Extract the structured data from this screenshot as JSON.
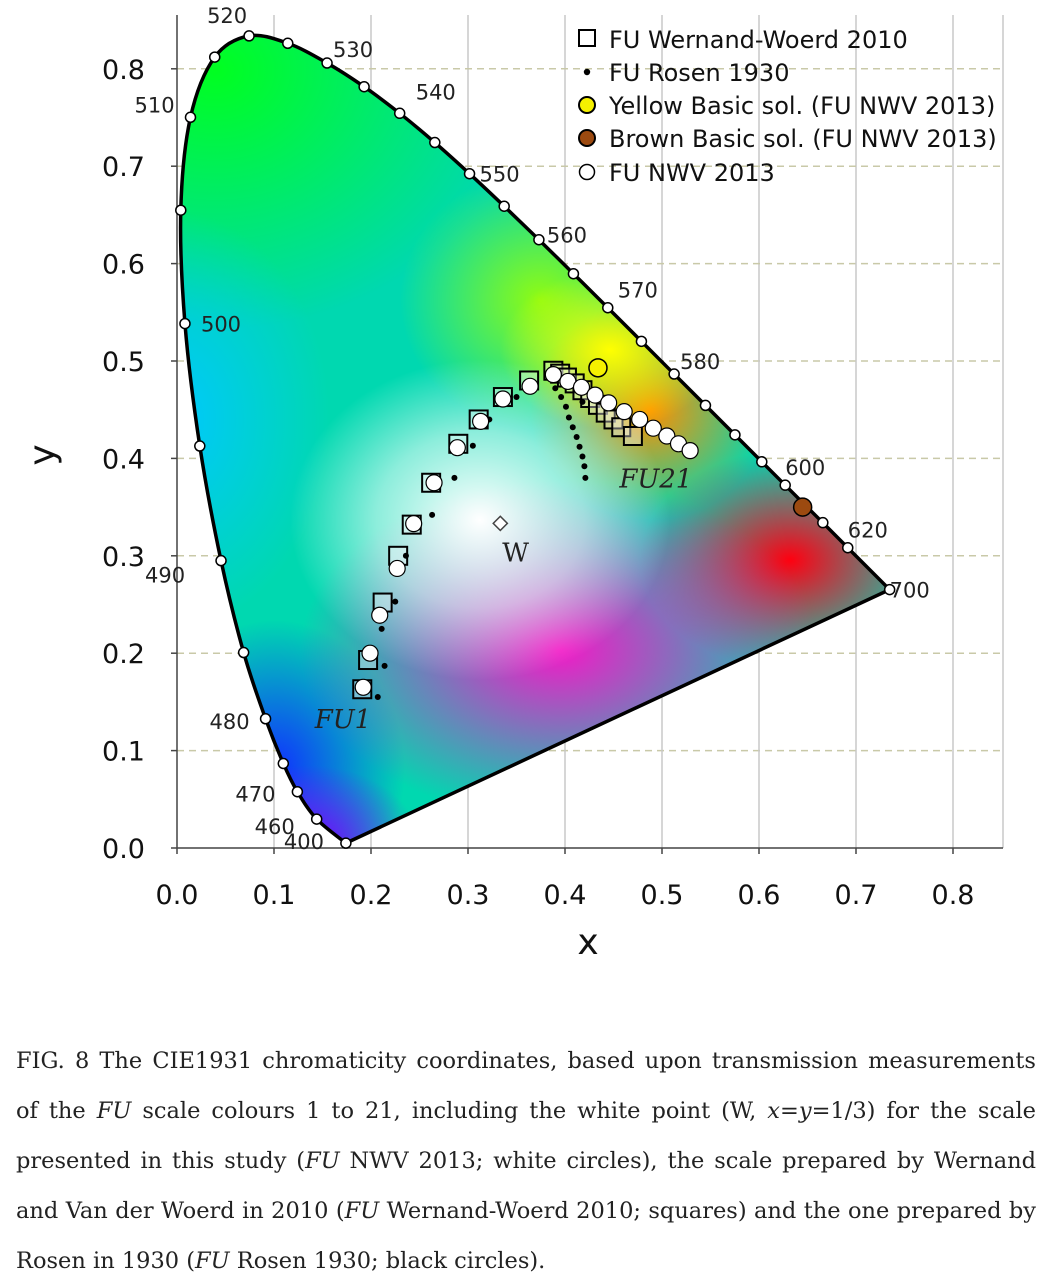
{
  "chart_data": {
    "type": "scatter",
    "xlabel": "x",
    "ylabel": "y",
    "xlim": [
      0.0,
      0.85
    ],
    "ylim": [
      0.0,
      0.85
    ],
    "x_ticks": [
      "0.0",
      "0.1",
      "0.2",
      "0.3",
      "0.4",
      "0.5",
      "0.6",
      "0.7",
      "0.8"
    ],
    "y_ticks": [
      "0.0",
      "0.1",
      "0.2",
      "0.3",
      "0.4",
      "0.5",
      "0.6",
      "0.7",
      "0.8"
    ],
    "grid": "horizontal dashed, vertical solid",
    "legend_position": "top-right",
    "legend": [
      "FU Wernand-Woerd 2010",
      "FU Rosen 1930",
      "Yellow Basic sol. (FU NWV 2013)",
      "Brown Basic sol. (FU NWV 2013)",
      "FU NWV 2013"
    ],
    "spectral_locus": [
      [
        0.1741,
        0.005
      ],
      [
        0.144,
        0.0297
      ],
      [
        0.1241,
        0.0578
      ],
      [
        0.1096,
        0.0868
      ],
      [
        0.0913,
        0.1327
      ],
      [
        0.0687,
        0.2007
      ],
      [
        0.0454,
        0.295
      ],
      [
        0.0235,
        0.4127
      ],
      [
        0.0082,
        0.5384
      ],
      [
        0.0039,
        0.6548
      ],
      [
        0.0139,
        0.7502
      ],
      [
        0.0389,
        0.812
      ],
      [
        0.0743,
        0.8338
      ],
      [
        0.1142,
        0.8262
      ],
      [
        0.1547,
        0.8059
      ],
      [
        0.1929,
        0.7816
      ],
      [
        0.2296,
        0.7543
      ],
      [
        0.2658,
        0.7243
      ],
      [
        0.3016,
        0.6923
      ],
      [
        0.3373,
        0.6589
      ],
      [
        0.3731,
        0.6245
      ],
      [
        0.4087,
        0.5896
      ],
      [
        0.4441,
        0.5547
      ],
      [
        0.4788,
        0.5202
      ],
      [
        0.5125,
        0.4866
      ],
      [
        0.5448,
        0.4544
      ],
      [
        0.5752,
        0.4242
      ],
      [
        0.6029,
        0.3965
      ],
      [
        0.627,
        0.3725
      ],
      [
        0.6482,
        0.3514
      ],
      [
        0.6658,
        0.334
      ],
      [
        0.6915,
        0.3083
      ],
      [
        0.7347,
        0.2653
      ]
    ],
    "wavelength_labels": [
      {
        "text": "400",
        "x": 0.1741,
        "y": 0.005
      },
      {
        "text": "460",
        "x": 0.144,
        "y": 0.0297
      },
      {
        "text": "470",
        "x": 0.1241,
        "y": 0.0578
      },
      {
        "text": "480",
        "x": 0.0913,
        "y": 0.1327
      },
      {
        "text": "490",
        "x": 0.0454,
        "y": 0.295
      },
      {
        "text": "500",
        "x": 0.0082,
        "y": 0.5384
      },
      {
        "text": "510",
        "x": 0.0139,
        "y": 0.7502
      },
      {
        "text": "520",
        "x": 0.0743,
        "y": 0.8338
      },
      {
        "text": "530",
        "x": 0.1547,
        "y": 0.8059
      },
      {
        "text": "540",
        "x": 0.2296,
        "y": 0.7543
      },
      {
        "text": "550",
        "x": 0.3016,
        "y": 0.6923
      },
      {
        "text": "560",
        "x": 0.3731,
        "y": 0.6245
      },
      {
        "text": "570",
        "x": 0.4441,
        "y": 0.5547
      },
      {
        "text": "580",
        "x": 0.5125,
        "y": 0.4866
      },
      {
        "text": "600",
        "x": 0.627,
        "y": 0.3725
      },
      {
        "text": "620",
        "x": 0.6915,
        "y": 0.3083
      },
      {
        "text": "700",
        "x": 0.7347,
        "y": 0.2653
      }
    ],
    "series": [
      {
        "name": "FU Wernand-Woerd 2010",
        "marker": "open-square",
        "points": [
          [
            0.191,
            0.163
          ],
          [
            0.197,
            0.193
          ],
          [
            0.212,
            0.252
          ],
          [
            0.228,
            0.3
          ],
          [
            0.242,
            0.332
          ],
          [
            0.262,
            0.375
          ],
          [
            0.29,
            0.415
          ],
          [
            0.311,
            0.44
          ],
          [
            0.336,
            0.463
          ],
          [
            0.363,
            0.48
          ],
          [
            0.388,
            0.49
          ],
          [
            0.395,
            0.487
          ],
          [
            0.402,
            0.483
          ],
          [
            0.41,
            0.477
          ],
          [
            0.418,
            0.47
          ],
          [
            0.426,
            0.462
          ],
          [
            0.434,
            0.455
          ],
          [
            0.442,
            0.447
          ],
          [
            0.45,
            0.44
          ],
          [
            0.458,
            0.432
          ],
          [
            0.47,
            0.423
          ]
        ]
      },
      {
        "name": "FU Rosen 1930",
        "marker": "small-dot",
        "points": [
          [
            0.207,
            0.155
          ],
          [
            0.214,
            0.187
          ],
          [
            0.211,
            0.225
          ],
          [
            0.225,
            0.253
          ],
          [
            0.236,
            0.3
          ],
          [
            0.263,
            0.342
          ],
          [
            0.286,
            0.38
          ],
          [
            0.305,
            0.413
          ],
          [
            0.322,
            0.44
          ],
          [
            0.35,
            0.463
          ],
          [
            0.39,
            0.472
          ],
          [
            0.396,
            0.463
          ],
          [
            0.401,
            0.453
          ],
          [
            0.404,
            0.442
          ],
          [
            0.408,
            0.432
          ],
          [
            0.412,
            0.422
          ],
          [
            0.415,
            0.412
          ],
          [
            0.418,
            0.402
          ],
          [
            0.42,
            0.392
          ],
          [
            0.421,
            0.38
          ],
          [
            0.418,
            0.458
          ]
        ]
      },
      {
        "name": "FU NWV 2013",
        "marker": "open-circle",
        "points": [
          [
            0.192,
            0.165
          ],
          [
            0.199,
            0.2
          ],
          [
            0.209,
            0.239
          ],
          [
            0.227,
            0.287
          ],
          [
            0.244,
            0.333
          ],
          [
            0.265,
            0.375
          ],
          [
            0.289,
            0.411
          ],
          [
            0.313,
            0.438
          ],
          [
            0.336,
            0.461
          ],
          [
            0.364,
            0.474
          ],
          [
            0.388,
            0.486
          ],
          [
            0.403,
            0.479
          ],
          [
            0.417,
            0.473
          ],
          [
            0.431,
            0.465
          ],
          [
            0.445,
            0.457
          ],
          [
            0.461,
            0.448
          ],
          [
            0.477,
            0.44
          ],
          [
            0.491,
            0.431
          ],
          [
            0.505,
            0.423
          ],
          [
            0.517,
            0.415
          ],
          [
            0.529,
            0.408
          ]
        ]
      },
      {
        "name": "Yellow Basic sol. (FU NWV 2013)",
        "marker": "yellow-circle",
        "color": "#f5f000",
        "points": [
          [
            0.434,
            0.493
          ]
        ]
      },
      {
        "name": "Brown Basic sol. (FU NWV 2013)",
        "marker": "brown-circle",
        "color": "#9c4a10",
        "points": [
          [
            0.645,
            0.35
          ]
        ]
      }
    ],
    "white_point": {
      "label": "W",
      "x": 0.3333,
      "y": 0.3333
    },
    "annotations": [
      {
        "text": "FU1",
        "x": 0.142,
        "y": 0.123
      },
      {
        "text": "FU21",
        "x": 0.456,
        "y": 0.37
      }
    ]
  },
  "caption": {
    "fig": "FIG. 8",
    "t1": " The CIE1931 chromaticity coordinates, based upon transmission measurements of the ",
    "fu_a": "FU",
    "t2": " scale colours 1 to 21, including the white point (W, ",
    "xy": "x",
    "eq1": "=",
    "yy": "y",
    "eq2": "=1/3) for the scale presented in this study (",
    "fu_b": "FU",
    "t3": " NWV 2013; white circles), the scale prepared by Wernand and Van der Woerd in 2010 (",
    "fu_c": "FU",
    "t4": " Wernand-Woerd 2010; squares) and the one prepared by Rosen in 1930 (",
    "fu_d": "FU",
    "t5": " Rosen 1930; black circles)."
  }
}
